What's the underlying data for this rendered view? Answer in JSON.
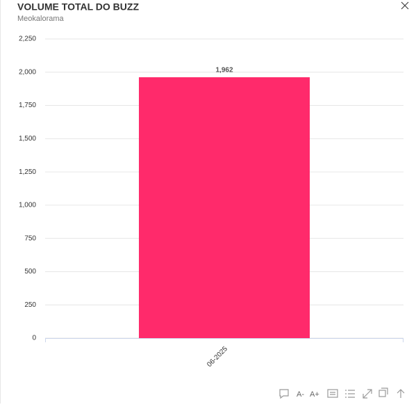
{
  "chart_data": {
    "type": "bar",
    "title": "VOLUME TOTAL DO BUZZ",
    "subtitle": "Meokalorama",
    "categories": [
      "06-2025"
    ],
    "values": [
      1962
    ],
    "value_labels": [
      "1,962"
    ],
    "color": "#ff2a6b",
    "ylim": [
      0,
      2250
    ],
    "yticks": [
      0,
      250,
      500,
      750,
      {
        "value": 1000,
        "label": "1,000"
      },
      {
        "value": 1250,
        "label": "1,250"
      },
      {
        "value": 1500,
        "label": "1,500"
      },
      {
        "value": 1750,
        "label": "1,750"
      },
      {
        "value": 2000,
        "label": "2,000"
      },
      {
        "value": 2250,
        "label": "2,250"
      }
    ],
    "grid": true
  },
  "toolbar": {
    "font_decrease": "A-",
    "font_increase": "A+"
  }
}
